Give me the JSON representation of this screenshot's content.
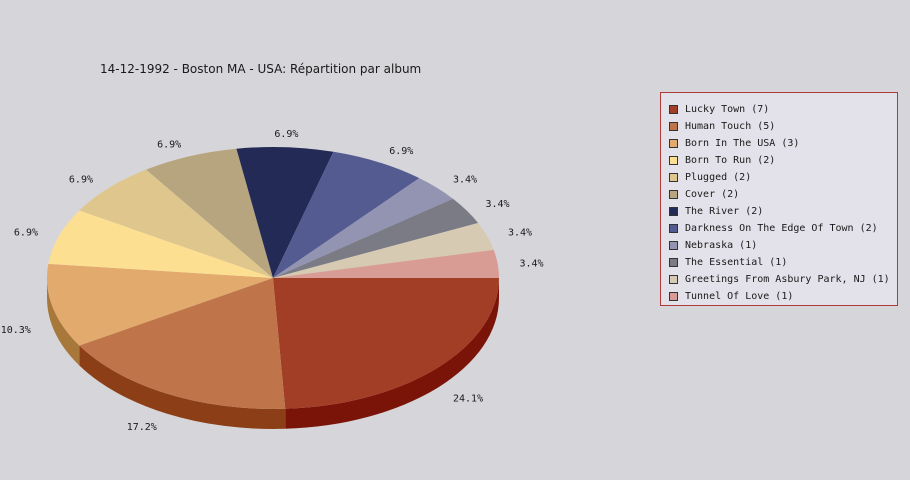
{
  "chart_data": {
    "type": "pie",
    "title": "14-12-1992 - Boston MA - USA:  Répartition par album",
    "legend_position": "right",
    "slices": [
      {
        "name": "Lucky Town",
        "count": 7,
        "value": 24.1,
        "label": "24.1%",
        "legend": "Lucky Town (7)",
        "color": "#a23e26",
        "side": "#7a1408"
      },
      {
        "name": "Human Touch",
        "count": 5,
        "value": 17.2,
        "label": "17.2%",
        "legend": "Human Touch (5)",
        "color": "#c0744a",
        "side": "#8c3e16"
      },
      {
        "name": "Born In The USA",
        "count": 3,
        "value": 10.3,
        "label": "10.3%",
        "legend": "Born In The USA (3)",
        "color": "#e2aa6c",
        "side": "#a8773a"
      },
      {
        "name": "Born To Run",
        "count": 2,
        "value": 6.9,
        "label": "6.9%",
        "legend": "Born To Run (2)",
        "color": "#fddf92",
        "side": "#c9a95c"
      },
      {
        "name": "Plugged",
        "count": 2,
        "value": 6.9,
        "label": "6.9%",
        "legend": "Plugged (2)",
        "color": "#dec68c",
        "side": "#a8915a"
      },
      {
        "name": "Cover",
        "count": 2,
        "value": 6.9,
        "label": "6.9%",
        "legend": "Cover (2)",
        "color": "#b6a57e",
        "side": "#857550"
      },
      {
        "name": "The River",
        "count": 2,
        "value": 6.9,
        "label": "6.9%",
        "legend": "The River (2)",
        "color": "#232a55",
        "side": "#141a38"
      },
      {
        "name": "Darkness On The Edge Of Town",
        "count": 2,
        "value": 6.9,
        "label": "6.9%",
        "legend": "Darkness On The Edge Of Town (2)",
        "color": "#545b91",
        "side": "#363c66"
      },
      {
        "name": "Nebraska",
        "count": 1,
        "value": 3.4,
        "label": "3.4%",
        "legend": "Nebraska (1)",
        "color": "#9394b2",
        "side": "#686988"
      },
      {
        "name": "The Essential",
        "count": 1,
        "value": 3.4,
        "label": "3.4%",
        "legend": "The Essential (1)",
        "color": "#7b7b85",
        "side": "#55555e"
      },
      {
        "name": "Greetings From Asbury Park, NJ",
        "count": 1,
        "value": 3.4,
        "label": "3.4%",
        "legend": "Greetings From Asbury Park, NJ (1)",
        "color": "#d6cbb2",
        "side": "#a59a80"
      },
      {
        "name": "Tunnel Of Love",
        "count": 1,
        "value": 3.4,
        "label": "3.4%",
        "legend": "Tunnel Of Love (1)",
        "color": "#d89c94",
        "side": "#a86c64"
      }
    ]
  }
}
